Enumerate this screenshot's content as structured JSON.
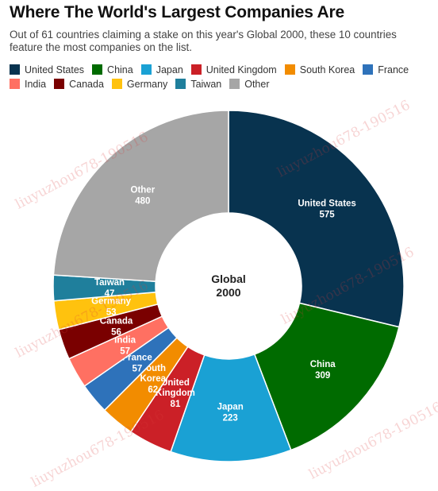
{
  "header": {
    "title": "Where The World's Largest Companies Are",
    "subtitle": "Out of 61 countries claiming a stake on this year's Global 2000, these 10 countries feature the most companies on the list."
  },
  "watermark": "liuyuzhou678-190516",
  "chart_data": {
    "type": "pie",
    "variant": "donut",
    "center_label": [
      "Global",
      "2000"
    ],
    "legend_position": "top",
    "slices": [
      {
        "name": "United States",
        "label_lines": [
          "United States"
        ],
        "value": 575,
        "color": "#08334f"
      },
      {
        "name": "China",
        "label_lines": [
          "China"
        ],
        "value": 309,
        "color": "#006b00"
      },
      {
        "name": "Japan",
        "label_lines": [
          "Japan"
        ],
        "value": 223,
        "color": "#1aa1d4"
      },
      {
        "name": "United Kingdom",
        "label_lines": [
          "United",
          "Kingdom"
        ],
        "value": 81,
        "color": "#cb2027"
      },
      {
        "name": "South Korea",
        "label_lines": [
          "South",
          "Korea"
        ],
        "value": 62,
        "color": "#f28c00"
      },
      {
        "name": "France",
        "label_lines": [
          "France"
        ],
        "value": 57,
        "color": "#2e72ba"
      },
      {
        "name": "India",
        "label_lines": [
          "India"
        ],
        "value": 57,
        "color": "#ff7062"
      },
      {
        "name": "Canada",
        "label_lines": [
          "Canada"
        ],
        "value": 56,
        "color": "#7a0000"
      },
      {
        "name": "Germany",
        "label_lines": [
          "Germany"
        ],
        "value": 53,
        "color": "#ffc20e"
      },
      {
        "name": "Taiwan",
        "label_lines": [
          "Taiwan"
        ],
        "value": 47,
        "color": "#1f7f9c"
      },
      {
        "name": "Other",
        "label_lines": [
          "Other"
        ],
        "value": 480,
        "color": "#a6a6a6"
      }
    ]
  }
}
